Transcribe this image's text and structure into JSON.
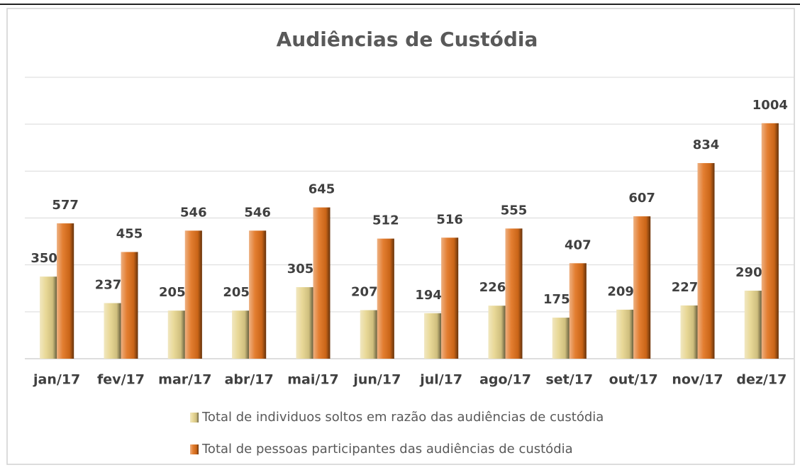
{
  "chart_data": {
    "type": "bar",
    "title": "Audiências de Custódia",
    "categories": [
      "jan/17",
      "fev/17",
      "mar/17",
      "abr/17",
      "mai/17",
      "jun/17",
      "jul/17",
      "ago/17",
      "set/17",
      "out/17",
      "nov/17",
      "dez/17"
    ],
    "series": [
      {
        "name": "Total de individuos soltos em razão das audiências de custódia",
        "color": "#e6d48c",
        "values": [
          350,
          237,
          205,
          205,
          305,
          207,
          194,
          226,
          175,
          209,
          227,
          290
        ]
      },
      {
        "name": "Total de pessoas participantes das audiências de custódia",
        "color": "#e0701a",
        "values": [
          577,
          455,
          546,
          546,
          645,
          512,
          516,
          555,
          407,
          607,
          834,
          1004
        ]
      }
    ],
    "ylim": [
      0,
      1200
    ],
    "yticks": [
      0,
      200,
      400,
      600,
      800,
      1000,
      1200
    ],
    "grid": true,
    "legend": "bottom"
  }
}
